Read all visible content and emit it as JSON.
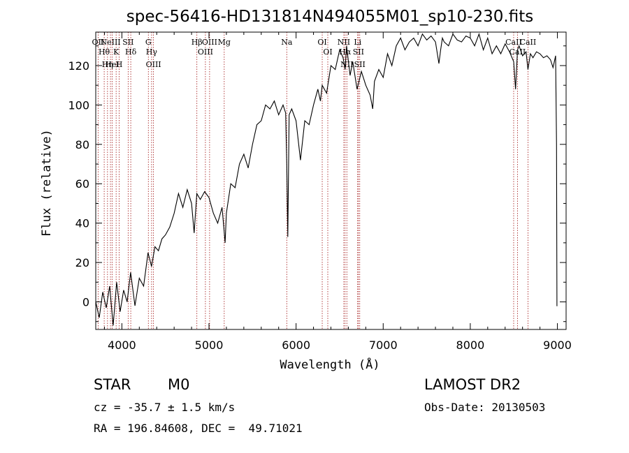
{
  "chart_data": {
    "type": "line",
    "title": "spec-56416-HD131814N494055M01_sp10-230.fits",
    "xlabel": "Wavelength (Å)",
    "ylabel": "Flux (relative)",
    "xlim": [
      3700,
      9100
    ],
    "ylim": [
      -14,
      137
    ],
    "xticks": [
      4000,
      5000,
      6000,
      7000,
      8000,
      9000
    ],
    "yticks": [
      0,
      20,
      40,
      60,
      80,
      100,
      120
    ],
    "grid": false,
    "series": [
      {
        "x": [
          3700,
          3740,
          3780,
          3820,
          3860,
          3900,
          3940,
          3980,
          4020,
          4060,
          4100,
          4150,
          4200,
          4250,
          4300,
          4340,
          4380,
          4420,
          4460,
          4500,
          4550,
          4600,
          4650,
          4700,
          4750,
          4800,
          4830,
          4860,
          4900,
          4950,
          5000,
          5050,
          5100,
          5150,
          5170,
          5185,
          5200,
          5250,
          5300,
          5350,
          5400,
          5450,
          5500,
          5550,
          5600,
          5650,
          5700,
          5750,
          5800,
          5850,
          5880,
          5893,
          5905,
          5920,
          5950,
          6000,
          6050,
          6100,
          6150,
          6200,
          6250,
          6280,
          6300,
          6350,
          6400,
          6450,
          6500,
          6540,
          6563,
          6580,
          6620,
          6650,
          6700,
          6750,
          6800,
          6850,
          6880,
          6900,
          6950,
          7000,
          7050,
          7100,
          7150,
          7200,
          7250,
          7300,
          7350,
          7400,
          7450,
          7500,
          7550,
          7600,
          7640,
          7660,
          7680,
          7700,
          7750,
          7800,
          7850,
          7900,
          7950,
          8000,
          8050,
          8100,
          8150,
          8200,
          8250,
          8300,
          8350,
          8400,
          8450,
          8498,
          8520,
          8542,
          8560,
          8600,
          8640,
          8662,
          8690,
          8720,
          8760,
          8800,
          8840,
          8880,
          8920,
          8950,
          8980,
          8990,
          8995,
          9000
        ],
        "values": [
          0,
          -8,
          5,
          -3,
          8,
          -12,
          10,
          -5,
          6,
          0,
          15,
          -2,
          12,
          8,
          25,
          18,
          28,
          26,
          32,
          34,
          38,
          45,
          55,
          48,
          57,
          50,
          35,
          55,
          52,
          56,
          53,
          45,
          40,
          48,
          38,
          30,
          45,
          60,
          58,
          70,
          75,
          68,
          80,
          90,
          92,
          100,
          98,
          102,
          95,
          100,
          96,
          70,
          33,
          95,
          98,
          92,
          72,
          92,
          90,
          100,
          108,
          102,
          110,
          106,
          120,
          118,
          128,
          124,
          118,
          130,
          115,
          122,
          108,
          117,
          110,
          105,
          98,
          112,
          118,
          114,
          126,
          120,
          130,
          134,
          128,
          132,
          134,
          130,
          136,
          133,
          135,
          132,
          121,
          128,
          134,
          132,
          130,
          136,
          133,
          132,
          135,
          134,
          130,
          136,
          128,
          134,
          126,
          130,
          126,
          131,
          127,
          122,
          108,
          128,
          130,
          125,
          127,
          118,
          126,
          124,
          127,
          126,
          124,
          125,
          123,
          119,
          125,
          80,
          -2,
          -2
        ]
      }
    ],
    "line_markers": [
      {
        "x": 3727,
        "label": "OII"
      },
      {
        "x": 3797,
        "label": "Hθ"
      },
      {
        "x": 3835,
        "label": "Hη"
      },
      {
        "x": 3869,
        "label": "NeIII"
      },
      {
        "x": 3889,
        "label": "HeI"
      },
      {
        "x": 3934,
        "label": "K"
      },
      {
        "x": 3969,
        "label": "H"
      },
      {
        "x": 4072,
        "label": "SII"
      },
      {
        "x": 4102,
        "label": "Hδ"
      },
      {
        "x": 4304,
        "label": "G"
      },
      {
        "x": 4341,
        "label": "Hγ"
      },
      {
        "x": 4363,
        "label": "OIII"
      },
      {
        "x": 4861,
        "label": "Hβ"
      },
      {
        "x": 4959,
        "label": "OIII"
      },
      {
        "x": 5007,
        "label": "OIII"
      },
      {
        "x": 5175,
        "label": "Mg"
      },
      {
        "x": 5893,
        "label": "Na"
      },
      {
        "x": 6300,
        "label": "OI"
      },
      {
        "x": 6364,
        "label": "OI"
      },
      {
        "x": 6548,
        "label": "NII"
      },
      {
        "x": 6563,
        "label": "Hα"
      },
      {
        "x": 6583,
        "label": "NII"
      },
      {
        "x": 6707,
        "label": "Li"
      },
      {
        "x": 6716,
        "label": "SII"
      },
      {
        "x": 6731,
        "label": "SII"
      },
      {
        "x": 8498,
        "label": "CaII"
      },
      {
        "x": 8542,
        "label": "CaII"
      },
      {
        "x": 8662,
        "label": "CaII"
      }
    ]
  },
  "info": {
    "object_class": "STAR",
    "subclass": "M0",
    "survey": "LAMOST DR2",
    "redshift": "cz = -35.7 ± 1.5 km/s",
    "obs_date": "Obs-Date: 20130503",
    "coords": "RA = 196.84608, DEC =  49.71021"
  },
  "colors": {
    "line_marker": "#a01010",
    "spectrum": "#000000",
    "background": "#ffffff"
  }
}
